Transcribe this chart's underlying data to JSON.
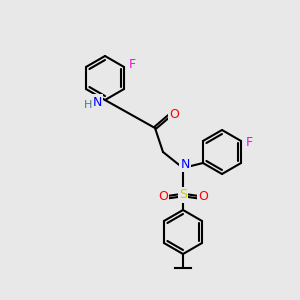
{
  "bg_color": "#e8e8e8",
  "bond_color": "#000000",
  "bond_width": 1.5,
  "atom_colors": {
    "N": "#0000ff",
    "O": "#ff0000",
    "F": "#ff00ff",
    "S": "#cccc00",
    "H": "#408080",
    "C": "#000000"
  },
  "font_size": 9
}
